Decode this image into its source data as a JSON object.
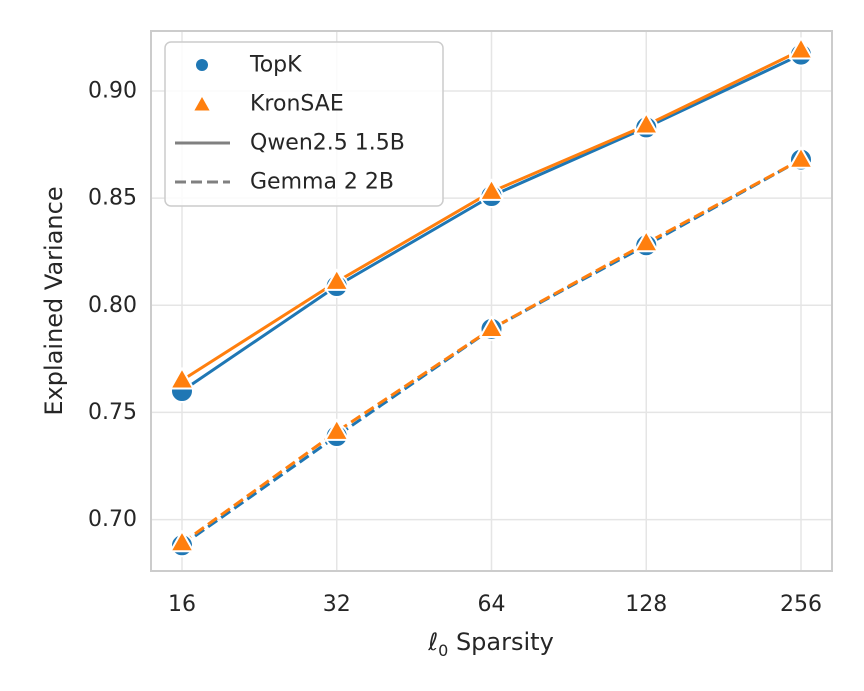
{
  "chart_data": {
    "type": "line",
    "xlabel_symbol": "ℓ",
    "xlabel_subscript": "0",
    "xlabel_text": " Sparsity",
    "ylabel": "Explained Variance",
    "x_scale": "log2",
    "x": [
      16,
      32,
      64,
      128,
      256
    ],
    "x_tick_labels": [
      "16",
      "32",
      "64",
      "128",
      "256"
    ],
    "ylim": [
      0.676,
      0.928
    ],
    "y_ticks": [
      0.7,
      0.75,
      0.8,
      0.85,
      0.9
    ],
    "y_tick_labels": [
      "0.70",
      "0.75",
      "0.80",
      "0.85",
      "0.90"
    ],
    "grid": true,
    "legend_position": "top-left",
    "legend": [
      {
        "label": "TopK",
        "kind": "marker",
        "marker": "circle",
        "color": "#1f77b4"
      },
      {
        "label": "KronSAE",
        "kind": "marker",
        "marker": "triangle",
        "color": "#ff7f0e"
      },
      {
        "label": "Qwen2.5 1.5B",
        "kind": "line",
        "dash": "solid",
        "color": "#808080"
      },
      {
        "label": "Gemma 2 2B",
        "kind": "line",
        "dash": "dashed",
        "color": "#808080"
      }
    ],
    "series": [
      {
        "name": "TopK",
        "model": "Qwen2.5 1.5B",
        "marker": "circle",
        "dash": "solid",
        "color": "#1f77b4",
        "values": [
          0.76,
          0.809,
          0.851,
          0.883,
          0.917
        ]
      },
      {
        "name": "KronSAE",
        "model": "Qwen2.5 1.5B",
        "marker": "triangle",
        "dash": "solid",
        "color": "#ff7f0e",
        "values": [
          0.765,
          0.811,
          0.853,
          0.884,
          0.919
        ]
      },
      {
        "name": "TopK",
        "model": "Gemma 2 2B",
        "marker": "circle",
        "dash": "dashed",
        "color": "#1f77b4",
        "values": [
          0.688,
          0.739,
          0.789,
          0.828,
          0.868
        ]
      },
      {
        "name": "KronSAE",
        "model": "Gemma 2 2B",
        "marker": "triangle",
        "dash": "dashed",
        "color": "#ff7f0e",
        "values": [
          0.689,
          0.741,
          0.789,
          0.829,
          0.868
        ]
      }
    ]
  }
}
